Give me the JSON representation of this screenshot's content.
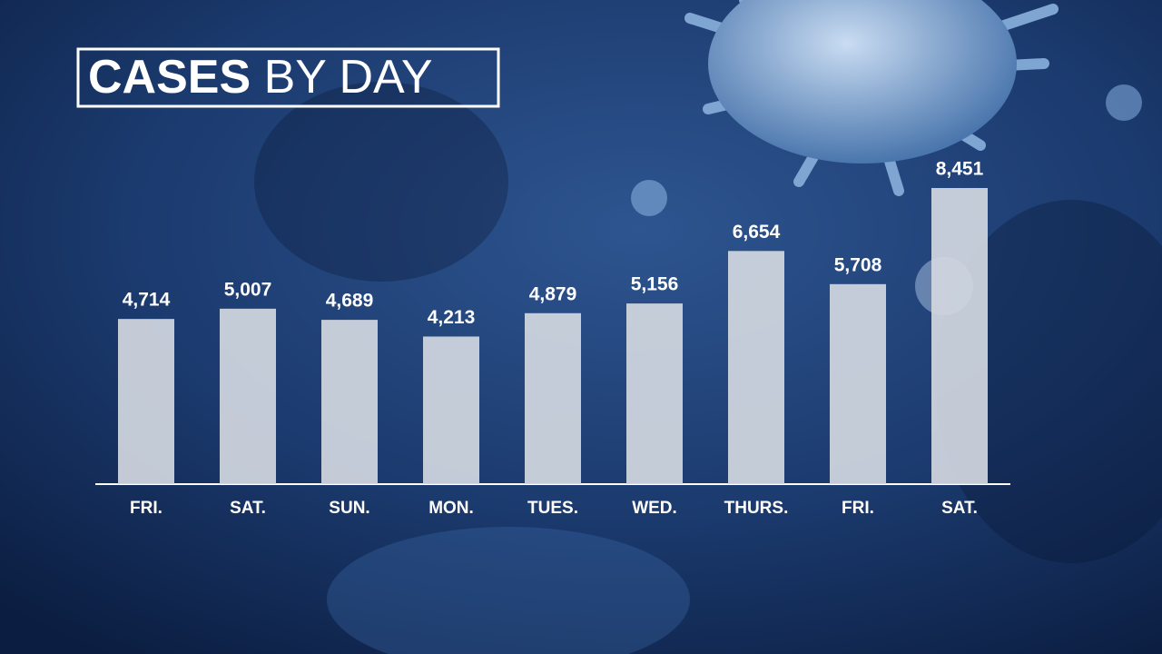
{
  "chart_data": {
    "type": "bar",
    "title": "CASES BY DAY",
    "categories": [
      "FRI.",
      "SAT.",
      "SUN.",
      "MON.",
      "TUES.",
      "WED.",
      "THURS.",
      "FRI.",
      "SAT."
    ],
    "values": [
      4714,
      5007,
      4689,
      4213,
      4879,
      5156,
      6654,
      5708,
      8451
    ],
    "value_labels": [
      "4,714",
      "5,007",
      "4,689",
      "4,213",
      "4,879",
      "5,156",
      "6,654",
      "5,708",
      "8,451"
    ],
    "color": "#d3d8e1"
  }
}
